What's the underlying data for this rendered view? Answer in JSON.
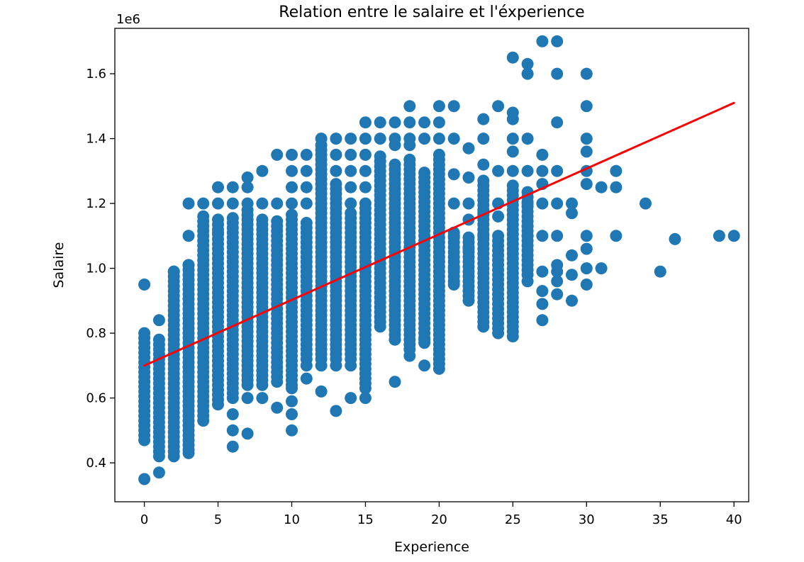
{
  "chart_data": {
    "type": "scatter",
    "title": "Relation entre le salaire et l'éxperience",
    "xlabel": "Experience",
    "ylabel": "Salaire",
    "y_offset_label": "1e6",
    "xlim": [
      -2,
      41
    ],
    "ylim": [
      0.28,
      1.74
    ],
    "x_ticks": [
      0,
      5,
      10,
      15,
      20,
      25,
      30,
      35,
      40
    ],
    "x_tick_labels": [
      "0",
      "5",
      "10",
      "15",
      "20",
      "25",
      "30",
      "35",
      "40"
    ],
    "y_ticks": [
      0.4,
      0.6,
      0.8,
      1.0,
      1.2,
      1.4,
      1.6
    ],
    "y_tick_labels": [
      "0.4",
      "0.6",
      "0.8",
      "1.0",
      "1.2",
      "1.4",
      "1.6"
    ],
    "grid": false,
    "colors": {
      "points": "#1f77b4",
      "fit_line": "#ff0000"
    },
    "fit_line": {
      "x": [
        0,
        40
      ],
      "y": [
        0.7,
        1.51
      ]
    },
    "columns": [
      {
        "x": 0,
        "y_min": 0.47,
        "y_max": 0.8,
        "spacing": 0.015
      },
      {
        "x": 1,
        "y_min": 0.42,
        "y_max": 0.78,
        "spacing": 0.015
      },
      {
        "x": 2,
        "y_min": 0.42,
        "y_max": 1.0,
        "spacing": 0.015
      },
      {
        "x": 3,
        "y_min": 0.44,
        "y_max": 1.02,
        "spacing": 0.015
      },
      {
        "x": 4,
        "y_min": 0.53,
        "y_max": 1.17,
        "spacing": 0.015
      },
      {
        "x": 5,
        "y_min": 0.58,
        "y_max": 1.15,
        "spacing": 0.015
      },
      {
        "x": 6,
        "y_min": 0.6,
        "y_max": 1.16,
        "spacing": 0.015
      },
      {
        "x": 7,
        "y_min": 0.64,
        "y_max": 1.18,
        "spacing": 0.015
      },
      {
        "x": 8,
        "y_min": 0.64,
        "y_max": 1.16,
        "spacing": 0.015
      },
      {
        "x": 9,
        "y_min": 0.65,
        "y_max": 1.15,
        "spacing": 0.015
      },
      {
        "x": 10,
        "y_min": 0.64,
        "y_max": 1.17,
        "spacing": 0.015
      },
      {
        "x": 11,
        "y_min": 0.72,
        "y_max": 1.15,
        "spacing": 0.015
      },
      {
        "x": 12,
        "y_min": 0.72,
        "y_max": 1.38,
        "spacing": 0.015
      },
      {
        "x": 13,
        "y_min": 0.72,
        "y_max": 1.26,
        "spacing": 0.015
      },
      {
        "x": 14,
        "y_min": 0.72,
        "y_max": 1.18,
        "spacing": 0.015
      },
      {
        "x": 15,
        "y_min": 0.63,
        "y_max": 1.2,
        "spacing": 0.015
      },
      {
        "x": 16,
        "y_min": 0.82,
        "y_max": 1.35,
        "spacing": 0.015
      },
      {
        "x": 17,
        "y_min": 0.78,
        "y_max": 1.32,
        "spacing": 0.015
      },
      {
        "x": 18,
        "y_min": 0.75,
        "y_max": 1.34,
        "spacing": 0.015
      },
      {
        "x": 19,
        "y_min": 0.77,
        "y_max": 1.3,
        "spacing": 0.015
      },
      {
        "x": 20,
        "y_min": 0.69,
        "y_max": 1.35,
        "spacing": 0.015
      },
      {
        "x": 21,
        "y_min": 0.96,
        "y_max": 1.12,
        "spacing": 0.015
      },
      {
        "x": 22,
        "y_min": 0.9,
        "y_max": 1.1,
        "spacing": 0.015
      },
      {
        "x": 23,
        "y_min": 0.82,
        "y_max": 1.28,
        "spacing": 0.015
      },
      {
        "x": 24,
        "y_min": 0.8,
        "y_max": 1.1,
        "spacing": 0.015
      },
      {
        "x": 25,
        "y_min": 0.79,
        "y_max": 1.26,
        "spacing": 0.015
      },
      {
        "x": 26,
        "y_min": 0.98,
        "y_max": 1.24,
        "spacing": 0.015
      }
    ],
    "points": [
      [
        0,
        0.35
      ],
      [
        0,
        0.95
      ],
      [
        1,
        0.37
      ],
      [
        1,
        0.84
      ],
      [
        2,
        0.99
      ],
      [
        3,
        0.43
      ],
      [
        3,
        1.2
      ],
      [
        3,
        1.1
      ],
      [
        3,
        1.01
      ],
      [
        4,
        1.2
      ],
      [
        5,
        1.25
      ],
      [
        5,
        1.2
      ],
      [
        5,
        1.11
      ],
      [
        6,
        1.25
      ],
      [
        6,
        1.2
      ],
      [
        6,
        0.45
      ],
      [
        6,
        0.5
      ],
      [
        6,
        0.55
      ],
      [
        7,
        1.28
      ],
      [
        7,
        1.25
      ],
      [
        7,
        1.2
      ],
      [
        7,
        0.49
      ],
      [
        7,
        0.6
      ],
      [
        8,
        1.3
      ],
      [
        8,
        1.2
      ],
      [
        8,
        0.6
      ],
      [
        9,
        1.35
      ],
      [
        9,
        1.2
      ],
      [
        9,
        0.57
      ],
      [
        10,
        1.35
      ],
      [
        10,
        1.3
      ],
      [
        10,
        1.25
      ],
      [
        10,
        1.2
      ],
      [
        10,
        0.5
      ],
      [
        10,
        0.55
      ],
      [
        10,
        0.59
      ],
      [
        10,
        0.63
      ],
      [
        11,
        1.35
      ],
      [
        11,
        1.3
      ],
      [
        11,
        1.25
      ],
      [
        11,
        1.2
      ],
      [
        11,
        0.7
      ],
      [
        11,
        0.66
      ],
      [
        12,
        1.4
      ],
      [
        12,
        0.62
      ],
      [
        12,
        0.7
      ],
      [
        13,
        1.4
      ],
      [
        13,
        1.35
      ],
      [
        13,
        1.3
      ],
      [
        13,
        0.56
      ],
      [
        13,
        0.7
      ],
      [
        14,
        1.4
      ],
      [
        14,
        1.35
      ],
      [
        14,
        1.3
      ],
      [
        14,
        1.25
      ],
      [
        14,
        1.2
      ],
      [
        14,
        0.6
      ],
      [
        14,
        0.7
      ],
      [
        15,
        1.45
      ],
      [
        15,
        1.4
      ],
      [
        15,
        1.35
      ],
      [
        15,
        1.3
      ],
      [
        15,
        1.25
      ],
      [
        15,
        0.6
      ],
      [
        16,
        1.45
      ],
      [
        16,
        1.4
      ],
      [
        17,
        1.45
      ],
      [
        17,
        1.4
      ],
      [
        17,
        1.38
      ],
      [
        17,
        0.65
      ],
      [
        17,
        0.78
      ],
      [
        18,
        1.5
      ],
      [
        18,
        1.45
      ],
      [
        18,
        1.4
      ],
      [
        18,
        1.38
      ],
      [
        18,
        0.73
      ],
      [
        19,
        1.45
      ],
      [
        19,
        1.4
      ],
      [
        19,
        0.7
      ],
      [
        19,
        0.78
      ],
      [
        20,
        1.5
      ],
      [
        20,
        1.45
      ],
      [
        20,
        1.4
      ],
      [
        21,
        1.5
      ],
      [
        21,
        1.4
      ],
      [
        21,
        1.29
      ],
      [
        21,
        1.2
      ],
      [
        21,
        1.1
      ],
      [
        21,
        1.0
      ],
      [
        21,
        0.95
      ],
      [
        22,
        1.37
      ],
      [
        22,
        1.28
      ],
      [
        22,
        1.2
      ],
      [
        22,
        1.15
      ],
      [
        22,
        1.06
      ],
      [
        23,
        1.46
      ],
      [
        23,
        1.4
      ],
      [
        23,
        1.32
      ],
      [
        23,
        1.17
      ],
      [
        23,
        1.1
      ],
      [
        24,
        1.5
      ],
      [
        24,
        1.3
      ],
      [
        24,
        1.2
      ],
      [
        24,
        1.16
      ],
      [
        25,
        1.65
      ],
      [
        25,
        1.48
      ],
      [
        25,
        1.46
      ],
      [
        25,
        1.4
      ],
      [
        25,
        1.36
      ],
      [
        25,
        1.3
      ],
      [
        26,
        1.63
      ],
      [
        26,
        1.6
      ],
      [
        26,
        1.4
      ],
      [
        26,
        1.3
      ],
      [
        26,
        1.2
      ],
      [
        26,
        1.13
      ],
      [
        26,
        1.1
      ],
      [
        26,
        0.96
      ],
      [
        27,
        1.7
      ],
      [
        27,
        1.35
      ],
      [
        27,
        1.3
      ],
      [
        27,
        1.26
      ],
      [
        27,
        1.2
      ],
      [
        27,
        1.1
      ],
      [
        27,
        0.99
      ],
      [
        27,
        0.93
      ],
      [
        27,
        0.89
      ],
      [
        27,
        0.84
      ],
      [
        28,
        1.7
      ],
      [
        28,
        1.6
      ],
      [
        28,
        1.45
      ],
      [
        28,
        1.3
      ],
      [
        28,
        1.2
      ],
      [
        28,
        1.1
      ],
      [
        28,
        1.01
      ],
      [
        28,
        0.99
      ],
      [
        28,
        0.96
      ],
      [
        28,
        0.92
      ],
      [
        29,
        1.2
      ],
      [
        29,
        1.17
      ],
      [
        29,
        1.04
      ],
      [
        29,
        0.98
      ],
      [
        29,
        0.9
      ],
      [
        30,
        1.6
      ],
      [
        30,
        1.5
      ],
      [
        30,
        1.4
      ],
      [
        30,
        1.36
      ],
      [
        30,
        1.3
      ],
      [
        30,
        1.26
      ],
      [
        30,
        1.1
      ],
      [
        30,
        1.06
      ],
      [
        30,
        1.0
      ],
      [
        30,
        0.95
      ],
      [
        31,
        1.25
      ],
      [
        31,
        1.0
      ],
      [
        32,
        1.3
      ],
      [
        32,
        1.25
      ],
      [
        32,
        1.1
      ],
      [
        34,
        1.2
      ],
      [
        35,
        0.99
      ],
      [
        36,
        1.09
      ],
      [
        39,
        1.1
      ],
      [
        40,
        1.1
      ]
    ]
  }
}
